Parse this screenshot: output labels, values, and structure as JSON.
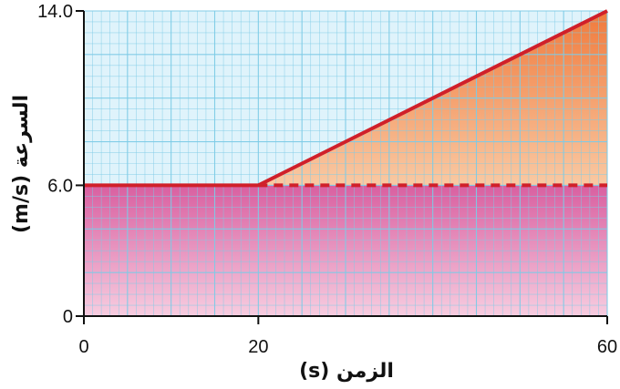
{
  "chart_data": {
    "type": "line",
    "title": "",
    "xlabel": "الزمن (s)",
    "ylabel": "السرعة (m/s)",
    "xlim": [
      0,
      60
    ],
    "ylim": [
      0,
      14.0
    ],
    "x_ticks": [
      0,
      20,
      60
    ],
    "x_tick_labels": [
      "0",
      "20",
      "60"
    ],
    "y_ticks": [
      0,
      6.0,
      14.0
    ],
    "y_tick_labels": [
      "0",
      "6.0",
      "14.0"
    ],
    "grid": true,
    "series": [
      {
        "x": [
          0,
          20,
          60
        ],
        "y": [
          6.0,
          6.0,
          14.0
        ],
        "style": "solid",
        "color": "#d0202a"
      },
      {
        "x": [
          20,
          60
        ],
        "y": [
          6.0,
          6.0
        ],
        "style": "dashed",
        "color": "#d0202a"
      }
    ],
    "shaded_regions": [
      {
        "kind": "rectangle",
        "x": [
          0,
          60
        ],
        "y_bottom": 0,
        "y_top": 6.0,
        "color_top": "#d95fa0",
        "color_bottom": "#f7cde0"
      },
      {
        "kind": "triangle",
        "points": [
          [
            20,
            6.0
          ],
          [
            60,
            6.0
          ],
          [
            60,
            14.0
          ]
        ],
        "color_top": "#f07a3c",
        "color_bottom": "#f9c9a3"
      }
    ],
    "colors": {
      "grid": "#7ecbe6",
      "plot_background": "#dff3fb",
      "line": "#d0202a",
      "axis": "#111111"
    }
  }
}
